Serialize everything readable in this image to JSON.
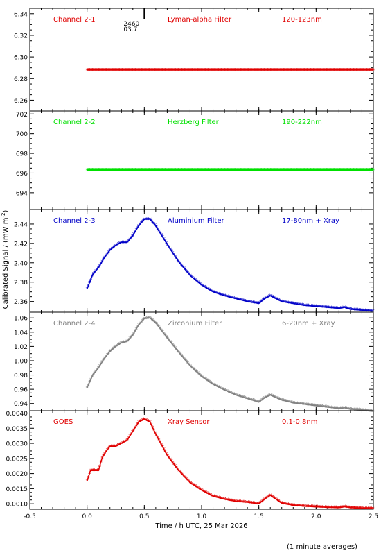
{
  "chart_data": [
    {
      "type": "scatter",
      "panel_labels": [
        "Channel 2-1",
        "Lyman-alpha Filter",
        "120-123nm"
      ],
      "color": "#e00000",
      "ylim": [
        6.25,
        6.345
      ],
      "yticks": [
        6.26,
        6.28,
        6.3,
        6.32,
        6.34
      ],
      "ytick_labels": [
        "6.26",
        "6.28",
        "6.30",
        "6.32",
        "6.34"
      ],
      "series": [
        {
          "x": [
            0.0,
            2.5
          ],
          "y": [
            6.288,
            6.288
          ]
        }
      ],
      "annotations": [
        "2460",
        "03.7"
      ]
    },
    {
      "type": "scatter",
      "panel_labels": [
        "Channel 2-2",
        "Herzberg Filter",
        "190-222nm"
      ],
      "color": "#00e000",
      "ylim": [
        692.3,
        702.3
      ],
      "yticks": [
        694,
        696,
        698,
        700,
        702
      ],
      "ytick_labels": [
        "694",
        "696",
        "698",
        "700",
        "702"
      ],
      "series": [
        {
          "x": [
            0.0,
            2.5
          ],
          "y": [
            696.3,
            696.3
          ]
        }
      ]
    },
    {
      "type": "scatter",
      "panel_labels": [
        "Channel 2-3",
        "Aluminium Filter",
        "17-80nm + Xray"
      ],
      "color": "#0000c8",
      "ylim": [
        2.349,
        2.455
      ],
      "yticks": [
        2.36,
        2.38,
        2.4,
        2.42,
        2.44
      ],
      "ytick_labels": [
        "2.36",
        "2.38",
        "2.40",
        "2.42",
        "2.44"
      ],
      "series": [
        {
          "x": [
            0.0,
            0.05,
            0.1,
            0.15,
            0.2,
            0.25,
            0.3,
            0.35,
            0.4,
            0.45,
            0.5,
            0.55,
            0.6,
            0.7,
            0.8,
            0.9,
            1.0,
            1.1,
            1.2,
            1.3,
            1.4,
            1.5,
            1.55,
            1.6,
            1.7,
            1.8,
            1.9,
            2.0,
            2.1,
            2.2,
            2.25,
            2.3,
            2.4,
            2.5
          ],
          "y": [
            2.373,
            2.388,
            2.395,
            2.405,
            2.413,
            2.418,
            2.421,
            2.421,
            2.428,
            2.438,
            2.445,
            2.445,
            2.438,
            2.419,
            2.401,
            2.387,
            2.377,
            2.37,
            2.366,
            2.363,
            2.36,
            2.358,
            2.363,
            2.366,
            2.36,
            2.358,
            2.356,
            2.355,
            2.354,
            2.353,
            2.354,
            2.352,
            2.351,
            2.35
          ]
        }
      ]
    },
    {
      "type": "scatter",
      "panel_labels": [
        "Channel 2-4",
        "Zirconium Filter",
        "6-20nm + Xray"
      ],
      "color": "#828282",
      "ylim": [
        0.93,
        1.068
      ],
      "yticks": [
        0.94,
        0.96,
        0.98,
        1.0,
        1.02,
        1.04,
        1.06
      ],
      "ytick_labels": [
        "0.94",
        "0.96",
        "0.98",
        "1.00",
        "1.02",
        "1.04",
        "1.06"
      ],
      "series": [
        {
          "x": [
            0.0,
            0.05,
            0.1,
            0.15,
            0.2,
            0.25,
            0.3,
            0.35,
            0.4,
            0.45,
            0.5,
            0.55,
            0.6,
            0.7,
            0.8,
            0.9,
            1.0,
            1.1,
            1.2,
            1.3,
            1.4,
            1.5,
            1.55,
            1.6,
            1.7,
            1.8,
            1.9,
            2.0,
            2.1,
            2.2,
            2.25,
            2.3,
            2.4,
            2.5
          ],
          "y": [
            0.962,
            0.98,
            0.99,
            1.003,
            1.013,
            1.02,
            1.025,
            1.027,
            1.036,
            1.05,
            1.059,
            1.06,
            1.053,
            1.032,
            1.012,
            0.993,
            0.978,
            0.967,
            0.959,
            0.952,
            0.947,
            0.942,
            0.948,
            0.952,
            0.945,
            0.941,
            0.939,
            0.937,
            0.935,
            0.933,
            0.934,
            0.932,
            0.931,
            0.929
          ]
        }
      ]
    },
    {
      "type": "scatter",
      "panel_labels": [
        "GOES",
        "Xray Sensor",
        "0.1-0.8nm"
      ],
      "color": "#e00000",
      "ylim": [
        0.00082,
        0.00408
      ],
      "yticks": [
        0.001,
        0.0015,
        0.002,
        0.0025,
        0.003,
        0.0035,
        0.004
      ],
      "ytick_labels": [
        "0.0010",
        "0.0015",
        "0.0020",
        "0.0025",
        "0.0030",
        "0.0035",
        "0.0040"
      ],
      "series": [
        {
          "x": [
            0.0,
            0.03,
            0.06,
            0.1,
            0.13,
            0.16,
            0.2,
            0.25,
            0.3,
            0.35,
            0.4,
            0.45,
            0.5,
            0.55,
            0.6,
            0.7,
            0.8,
            0.9,
            1.0,
            1.1,
            1.2,
            1.3,
            1.4,
            1.5,
            1.55,
            1.6,
            1.7,
            1.8,
            1.9,
            2.0,
            2.1,
            2.2,
            2.25,
            2.3,
            2.4,
            2.5
          ],
          "y": [
            0.00175,
            0.0021,
            0.0021,
            0.0021,
            0.0025,
            0.0027,
            0.0029,
            0.0029,
            0.003,
            0.0031,
            0.0034,
            0.0037,
            0.0038,
            0.0037,
            0.0033,
            0.0026,
            0.0021,
            0.0017,
            0.00145,
            0.00125,
            0.00115,
            0.00108,
            0.00105,
            0.001,
            0.00115,
            0.00128,
            0.00102,
            0.00095,
            0.00092,
            0.0009,
            0.00088,
            0.00087,
            0.0009,
            0.00087,
            0.00085,
            0.00084
          ]
        }
      ]
    }
  ],
  "x_axis": {
    "xlim": [
      -0.5,
      2.5
    ],
    "ticks": [
      -0.5,
      0.0,
      0.5,
      1.0,
      1.5,
      2.0,
      2.5
    ],
    "tick_labels": [
      "-0.5",
      "0.0",
      "0.5",
      "1.0",
      "1.5",
      "2.0",
      "2.5"
    ],
    "label": "Time / h UTC, 25 Mar 2026"
  },
  "ylabel": "Calibrated Signal / (mW m",
  "ylabel_sup": "-2",
  "ylabel_close": ")",
  "footnote": "(1 minute averages)",
  "axis_color": "#000000"
}
